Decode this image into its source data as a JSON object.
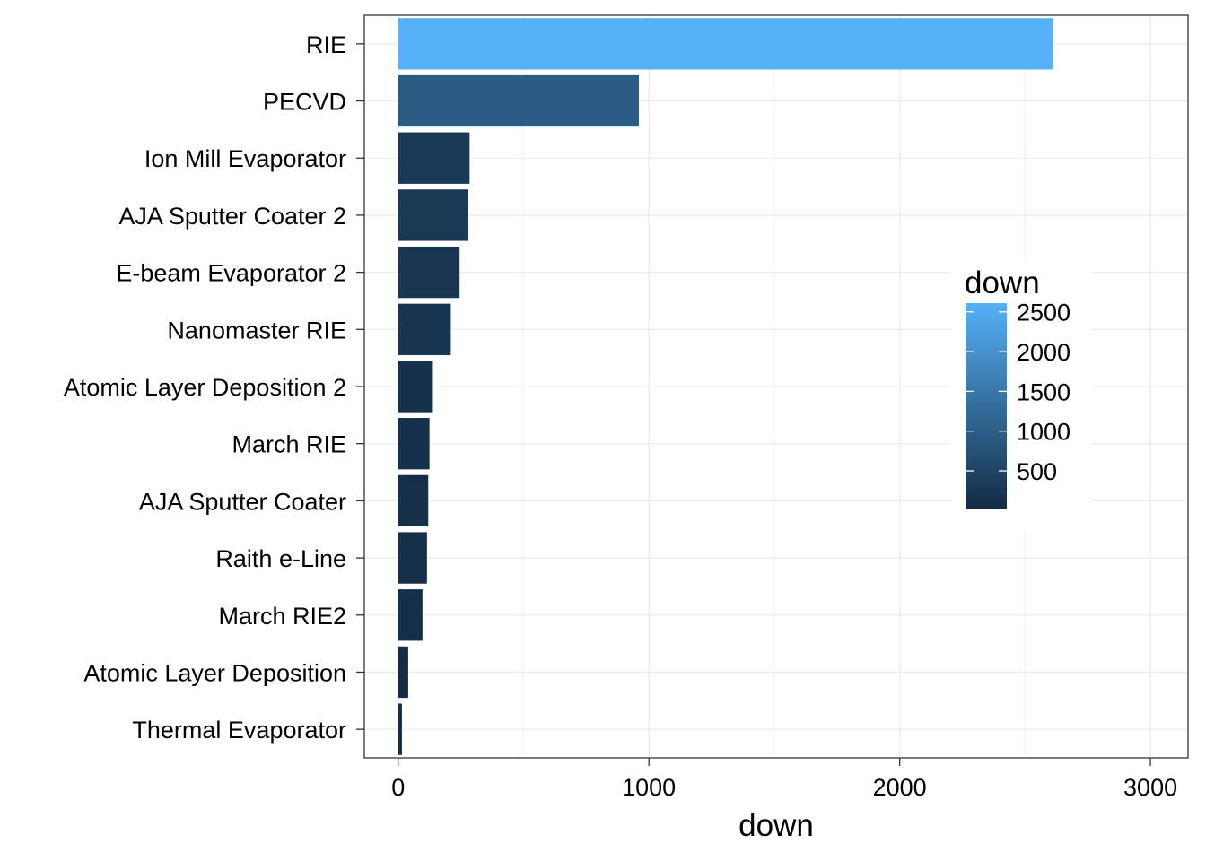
{
  "chart_data": {
    "type": "bar",
    "orientation": "horizontal",
    "categories": [
      "RIE",
      "PECVD",
      "Ion Mill Evaporator",
      "AJA Sputter Coater 2",
      "E-beam Evaporator 2",
      "Nanomaster RIE",
      "Atomic Layer Deposition 2",
      "March RIE",
      "AJA Sputter Coater",
      "Raith e-Line",
      "March RIE2",
      "Atomic Layer Deposition",
      "Thermal Evaporator"
    ],
    "values": [
      2610,
      960,
      285,
      280,
      245,
      210,
      135,
      125,
      120,
      115,
      97,
      40,
      15
    ],
    "xlabel": "down",
    "ylabel": "",
    "xlim": [
      -135,
      3150
    ],
    "xticks": [
      0,
      1000,
      2000,
      3000
    ],
    "grid": true,
    "fill_scale": {
      "title": "down",
      "low_color": "#132b43",
      "high_color": "#56b1f7",
      "min": 15,
      "max": 2610,
      "breaks": [
        500,
        1000,
        1500,
        2000,
        2500
      ],
      "legend_position": "right inside"
    },
    "panel_border_color": "#333333",
    "grid_color": "#ebebeb"
  }
}
